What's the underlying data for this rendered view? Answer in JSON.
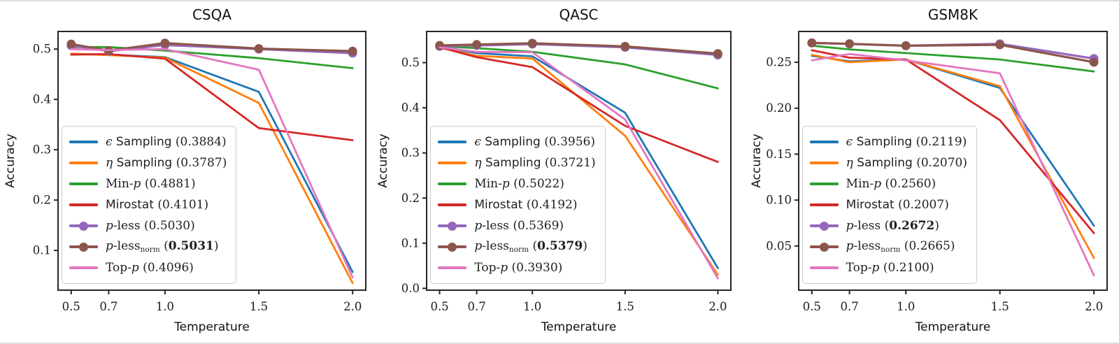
{
  "page": {
    "background": "#ffffff",
    "frame_line_color": "#dcdcdc"
  },
  "chart_data": [
    {
      "type": "line",
      "key": "csqa",
      "title": "CSQA",
      "xlabel": "Temperature",
      "ylabel": "Accuracy",
      "x": [
        0.5,
        0.7,
        1.0,
        1.5,
        2.0
      ],
      "xtick_labels": [
        "0.5",
        "0.7",
        "1.0",
        "1.5",
        "2.0"
      ],
      "yticks": [
        0.1,
        0.2,
        0.3,
        0.4,
        0.5
      ],
      "ytick_labels": [
        "0.1",
        "0.2",
        "0.3",
        "0.4",
        "0.5"
      ],
      "xlim": [
        0.43,
        2.07
      ],
      "ylim": [
        0.021,
        0.535
      ],
      "grid": false,
      "legend_position": "lower left",
      "series": [
        {
          "key": "epsilon-sampling",
          "color": "#1f77b4",
          "marker": false,
          "values": [
            0.49,
            0.489,
            0.484,
            0.415,
            0.057
          ],
          "legend": [
            {
              "t": "ϵ",
              "s": "mi"
            },
            {
              "t": " Sampling ",
              "s": "sans"
            },
            {
              "t": "(0.3884)",
              "s": "num"
            }
          ]
        },
        {
          "key": "eta-sampling",
          "color": "#ff7f0e",
          "marker": false,
          "values": [
            0.491,
            0.488,
            0.483,
            0.393,
            0.035
          ],
          "legend": [
            {
              "t": "η",
              "s": "mi"
            },
            {
              "t": " Sampling ",
              "s": "sans"
            },
            {
              "t": "(0.3787)",
              "s": "num"
            }
          ]
        },
        {
          "key": "min-p",
          "color": "#2ca02c",
          "marker": false,
          "values": [
            0.504,
            0.504,
            0.497,
            0.482,
            0.462
          ],
          "legend": [
            {
              "t": "Min-",
              "s": "mr"
            },
            {
              "t": "p",
              "s": "mi"
            },
            {
              "t": " (0.4881)",
              "s": "num"
            }
          ]
        },
        {
          "key": "mirostat",
          "color": "#d62728",
          "marker": false,
          "values": [
            0.489,
            0.49,
            0.481,
            0.343,
            0.319
          ],
          "legend": [
            {
              "t": "Mirostat ",
              "s": "sans"
            },
            {
              "t": "(0.4101)",
              "s": "num"
            }
          ]
        },
        {
          "key": "p-less",
          "color": "#9467bd",
          "marker": true,
          "values": [
            0.507,
            0.496,
            0.508,
            0.5,
            0.492
          ],
          "legend": [
            {
              "t": "p",
              "s": "mi"
            },
            {
              "t": "-less ",
              "s": "mr"
            },
            {
              "t": "(0.5030)",
              "s": "num"
            }
          ]
        },
        {
          "key": "p-less-norm",
          "color": "#8c564b",
          "marker": true,
          "values": [
            0.51,
            0.497,
            0.512,
            0.501,
            0.496
          ],
          "legend": [
            {
              "t": "p",
              "s": "mi"
            },
            {
              "t": "-less",
              "s": "mr"
            },
            {
              "t": "norm",
              "s": "sub"
            },
            {
              "t": " (",
              "s": "num"
            },
            {
              "t": "0.5031",
              "s": "numb"
            },
            {
              "t": ")",
              "s": "num"
            }
          ]
        },
        {
          "key": "top-p",
          "color": "#e377c2",
          "marker": false,
          "values": [
            0.5,
            0.498,
            0.5,
            0.459,
            0.046
          ],
          "legend": [
            {
              "t": "Top-",
              "s": "mr"
            },
            {
              "t": "p",
              "s": "mi"
            },
            {
              "t": " (0.4096)",
              "s": "num"
            }
          ]
        }
      ]
    },
    {
      "type": "line",
      "key": "qasc",
      "title": "QASC",
      "xlabel": "Temperature",
      "ylabel": "Accuracy",
      "x": [
        0.5,
        0.7,
        1.0,
        1.5,
        2.0
      ],
      "xtick_labels": [
        "0.5",
        "0.7",
        "1.0",
        "1.5",
        "2.0"
      ],
      "yticks": [
        0.0,
        0.1,
        0.2,
        0.3,
        0.4,
        0.5
      ],
      "ytick_labels": [
        "0.0",
        "0.1",
        "0.2",
        "0.3",
        "0.4",
        "0.5"
      ],
      "xlim": [
        0.43,
        2.07
      ],
      "ylim": [
        -0.004,
        0.569
      ],
      "grid": false,
      "legend_position": "lower left",
      "series": [
        {
          "key": "epsilon-sampling",
          "color": "#1f77b4",
          "marker": false,
          "values": [
            0.535,
            0.521,
            0.514,
            0.389,
            0.045
          ],
          "legend": [
            {
              "t": "ϵ",
              "s": "mi"
            },
            {
              "t": " Sampling ",
              "s": "sans"
            },
            {
              "t": "(0.3956)",
              "s": "num"
            }
          ]
        },
        {
          "key": "eta-sampling",
          "color": "#ff7f0e",
          "marker": false,
          "values": [
            0.533,
            0.515,
            0.509,
            0.338,
            0.03
          ],
          "legend": [
            {
              "t": "η",
              "s": "mi"
            },
            {
              "t": " Sampling ",
              "s": "sans"
            },
            {
              "t": "(0.3721)",
              "s": "num"
            }
          ]
        },
        {
          "key": "min-p",
          "color": "#2ca02c",
          "marker": false,
          "values": [
            0.536,
            0.532,
            0.524,
            0.496,
            0.443
          ],
          "legend": [
            {
              "t": "Min-",
              "s": "mr"
            },
            {
              "t": "p",
              "s": "mi"
            },
            {
              "t": " (0.5022)",
              "s": "num"
            }
          ]
        },
        {
          "key": "mirostat",
          "color": "#d62728",
          "marker": false,
          "values": [
            0.534,
            0.512,
            0.49,
            0.36,
            0.28
          ],
          "legend": [
            {
              "t": "Mirostat ",
              "s": "sans"
            },
            {
              "t": "(0.4192)",
              "s": "num"
            }
          ]
        },
        {
          "key": "p-less",
          "color": "#9467bd",
          "marker": true,
          "values": [
            0.536,
            0.538,
            0.541,
            0.534,
            0.517
          ],
          "legend": [
            {
              "t": "p",
              "s": "mi"
            },
            {
              "t": "-less ",
              "s": "mr"
            },
            {
              "t": "(0.5369)",
              "s": "num"
            }
          ]
        },
        {
          "key": "p-less-norm",
          "color": "#8c564b",
          "marker": true,
          "values": [
            0.538,
            0.54,
            0.543,
            0.536,
            0.52
          ],
          "legend": [
            {
              "t": "p",
              "s": "mi"
            },
            {
              "t": "-less",
              "s": "mr"
            },
            {
              "t": "norm",
              "s": "sub"
            },
            {
              "t": " (",
              "s": "num"
            },
            {
              "t": "0.5379",
              "s": "numb"
            },
            {
              "t": ")",
              "s": "num"
            }
          ]
        },
        {
          "key": "top-p",
          "color": "#e377c2",
          "marker": false,
          "values": [
            0.534,
            0.524,
            0.523,
            0.374,
            0.022
          ],
          "legend": [
            {
              "t": "Top-",
              "s": "mr"
            },
            {
              "t": "p",
              "s": "mi"
            },
            {
              "t": " (0.3930)",
              "s": "num"
            }
          ]
        }
      ]
    },
    {
      "type": "line",
      "key": "gsm8k",
      "title": "GSM8K",
      "xlabel": "Temperature",
      "ylabel": "Accuracy",
      "x": [
        0.5,
        0.7,
        1.0,
        1.5,
        2.0
      ],
      "xtick_labels": [
        "0.5",
        "0.7",
        "1.0",
        "1.5",
        "2.0"
      ],
      "yticks": [
        0.05,
        0.1,
        0.15,
        0.2,
        0.25
      ],
      "ytick_labels": [
        "0.05",
        "0.10",
        "0.15",
        "0.20",
        "0.25"
      ],
      "xlim": [
        0.43,
        2.07
      ],
      "ylim": [
        0.002,
        0.2835
      ],
      "grid": false,
      "legend_position": "lower left",
      "series": [
        {
          "key": "epsilon-sampling",
          "color": "#1f77b4",
          "marker": false,
          "values": [
            0.257,
            0.251,
            0.253,
            0.222,
            0.072
          ],
          "legend": [
            {
              "t": "ϵ",
              "s": "mi"
            },
            {
              "t": " Sampling ",
              "s": "sans"
            },
            {
              "t": "(0.2119)",
              "s": "num"
            }
          ]
        },
        {
          "key": "eta-sampling",
          "color": "#ff7f0e",
          "marker": false,
          "values": [
            0.258,
            0.25,
            0.253,
            0.224,
            0.037
          ],
          "legend": [
            {
              "t": "η",
              "s": "mi"
            },
            {
              "t": " Sampling ",
              "s": "sans"
            },
            {
              "t": "(0.2070)",
              "s": "num"
            }
          ]
        },
        {
          "key": "min-p",
          "color": "#2ca02c",
          "marker": false,
          "values": [
            0.268,
            0.264,
            0.26,
            0.253,
            0.24
          ],
          "legend": [
            {
              "t": "Min-",
              "s": "mr"
            },
            {
              "t": "p",
              "s": "mi"
            },
            {
              "t": " (0.2560)",
              "s": "num"
            }
          ]
        },
        {
          "key": "mirostat",
          "color": "#d62728",
          "marker": false,
          "values": [
            0.263,
            0.255,
            0.253,
            0.187,
            0.064
          ],
          "legend": [
            {
              "t": "Mirostat ",
              "s": "sans"
            },
            {
              "t": "(0.2007)",
              "s": "num"
            }
          ]
        },
        {
          "key": "p-less",
          "color": "#9467bd",
          "marker": true,
          "values": [
            0.271,
            0.27,
            0.268,
            0.27,
            0.254
          ],
          "legend": [
            {
              "t": "p",
              "s": "mi"
            },
            {
              "t": "-less ",
              "s": "mr"
            },
            {
              "t": "(",
              "s": "num"
            },
            {
              "t": "0.2672",
              "s": "numb"
            },
            {
              "t": ")",
              "s": "num"
            }
          ]
        },
        {
          "key": "p-less-norm",
          "color": "#8c564b",
          "marker": true,
          "values": [
            0.271,
            0.27,
            0.268,
            0.269,
            0.25
          ],
          "legend": [
            {
              "t": "p",
              "s": "mi"
            },
            {
              "t": "-less",
              "s": "mr"
            },
            {
              "t": "norm",
              "s": "sub"
            },
            {
              "t": " (0.2665)",
              "s": "num"
            }
          ]
        },
        {
          "key": "top-p",
          "color": "#e377c2",
          "marker": false,
          "values": [
            0.252,
            0.259,
            0.252,
            0.238,
            0.018
          ],
          "legend": [
            {
              "t": "Top-",
              "s": "mr"
            },
            {
              "t": "p",
              "s": "mi"
            },
            {
              "t": " (0.2100)",
              "s": "num"
            }
          ]
        }
      ]
    }
  ]
}
